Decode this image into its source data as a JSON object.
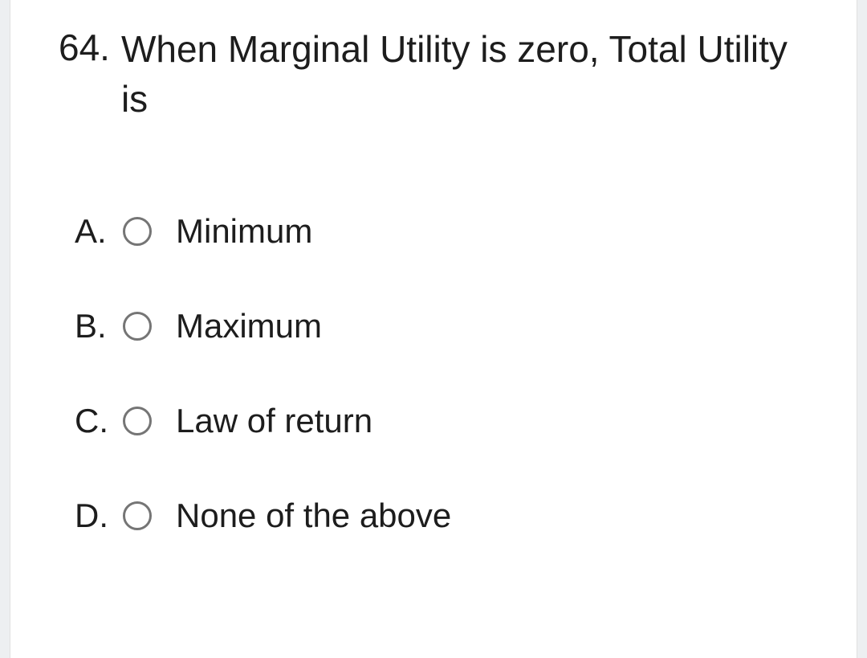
{
  "question": {
    "number": "64.",
    "text": "When Marginal Utility is zero, Total Utility is"
  },
  "options": [
    {
      "letter": "A.",
      "label": "Minimum",
      "selected": false
    },
    {
      "letter": "B.",
      "label": "Maximum",
      "selected": false
    },
    {
      "letter": "C.",
      "label": "Law of return",
      "selected": false
    },
    {
      "letter": "D.",
      "label": "None of the above",
      "selected": false
    }
  ],
  "colors": {
    "background": "#edeff1",
    "card": "#ffffff",
    "text": "#1d1d1d",
    "radio_border": "#757575"
  },
  "typography": {
    "question_fontsize": 46,
    "option_fontsize": 42,
    "font_family": "Arial"
  }
}
